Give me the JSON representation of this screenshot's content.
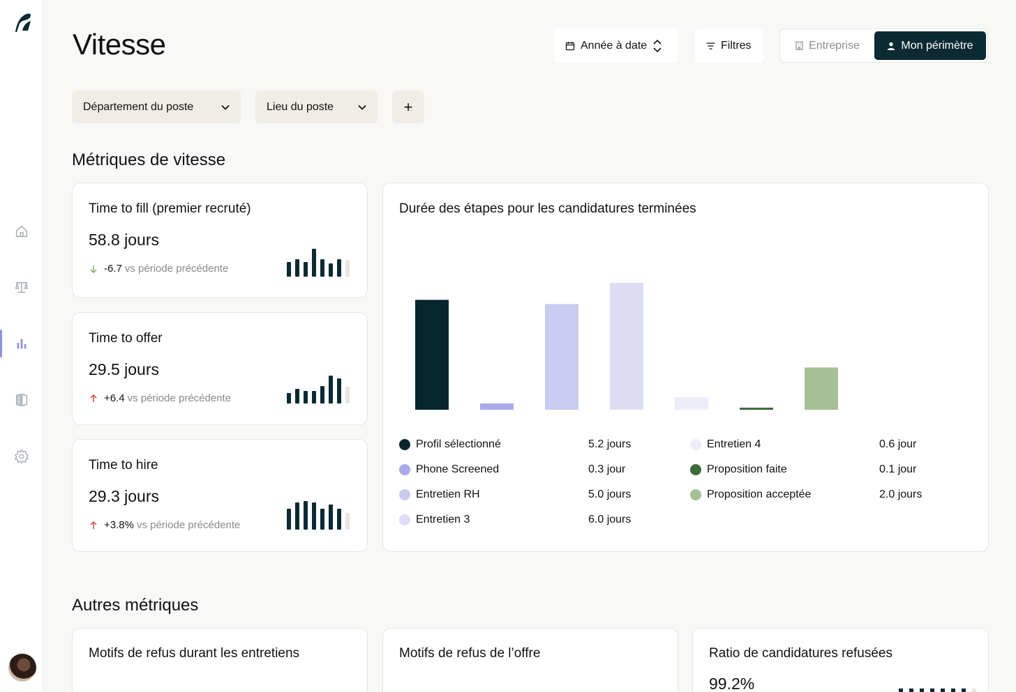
{
  "page": {
    "title": "Vitesse"
  },
  "toolbar": {
    "period_label": "Année à date",
    "filters_label": "Filtres",
    "scope_company": "Entreprise",
    "scope_mine": "Mon périmètre"
  },
  "filters": {
    "department": "Département du poste",
    "location": "Lieu du poste",
    "add": "+"
  },
  "sections": {
    "speed": "Métriques de vitesse",
    "other": "Autres métriques"
  },
  "metrics": [
    {
      "title": "Time to fill (premier recruté)",
      "value": "58.8 jours",
      "delta": "-6.7",
      "delta_dir": "down",
      "delta_label": "vs période précédente",
      "bars": [
        0.5,
        0.6,
        0.5,
        0.95,
        0.6,
        0.45,
        0.6
      ],
      "last_light": true
    },
    {
      "title": "Time to offer",
      "value": "29.5 jours",
      "delta": "+6.4",
      "delta_dir": "up",
      "delta_label": "vs période précédente",
      "bars": [
        0.35,
        0.5,
        0.42,
        0.42,
        0.6,
        0.95,
        0.85
      ],
      "last_light": true
    },
    {
      "title": "Time to hire",
      "value": "29.3 jours",
      "delta": "+3.8%",
      "delta_dir": "up",
      "delta_label": "vs période précédente",
      "bars": [
        0.72,
        0.92,
        0.98,
        0.92,
        0.72,
        0.85,
        0.72
      ],
      "last_light": true
    }
  ],
  "stage_chart": {
    "title": "Durée des étapes pour les candidatures terminées"
  },
  "chart_data": {
    "type": "bar",
    "title": "Durée des étapes pour les candidatures terminées",
    "categories": [
      "Profil sélectionné",
      "Phone Screened",
      "Entretien RH",
      "Entretien 3",
      "Entretien 4",
      "Proposition faite",
      "Proposition acceptée"
    ],
    "values": [
      5.2,
      0.3,
      5.0,
      6.0,
      0.6,
      0.1,
      2.0
    ],
    "value_labels": [
      "5.2 jours",
      "0.3 jour",
      "5.0 jours",
      "6.0 jours",
      "0.6 jour",
      "0.1 jour",
      "2.0 jours"
    ],
    "colors": [
      "#072630",
      "#a8abe8",
      "#c9cbf0",
      "#dcddf5",
      "#ededfa",
      "#3e6b3b",
      "#a5c094"
    ],
    "ylim": [
      0,
      6.0
    ],
    "grid": false,
    "legend": "bottom"
  },
  "other_metrics": [
    {
      "title": "Motifs de refus durant les entretiens"
    },
    {
      "title": "Motifs de refus de l’offre"
    },
    {
      "title": "Ratio de candidatures refusées",
      "value": "99.2%"
    }
  ],
  "icons": {
    "logo": "brand-logo-icon",
    "home": "home-icon",
    "balance": "scale-icon",
    "analytics": "bar-chart-icon",
    "compare": "book-compare-icon",
    "settings": "gear-icon",
    "calendar": "calendar-icon",
    "sort": "updown-chevron-icon",
    "filter": "filter-icon",
    "building": "building-icon",
    "person": "person-icon",
    "chevron": "chevron-down-icon"
  }
}
